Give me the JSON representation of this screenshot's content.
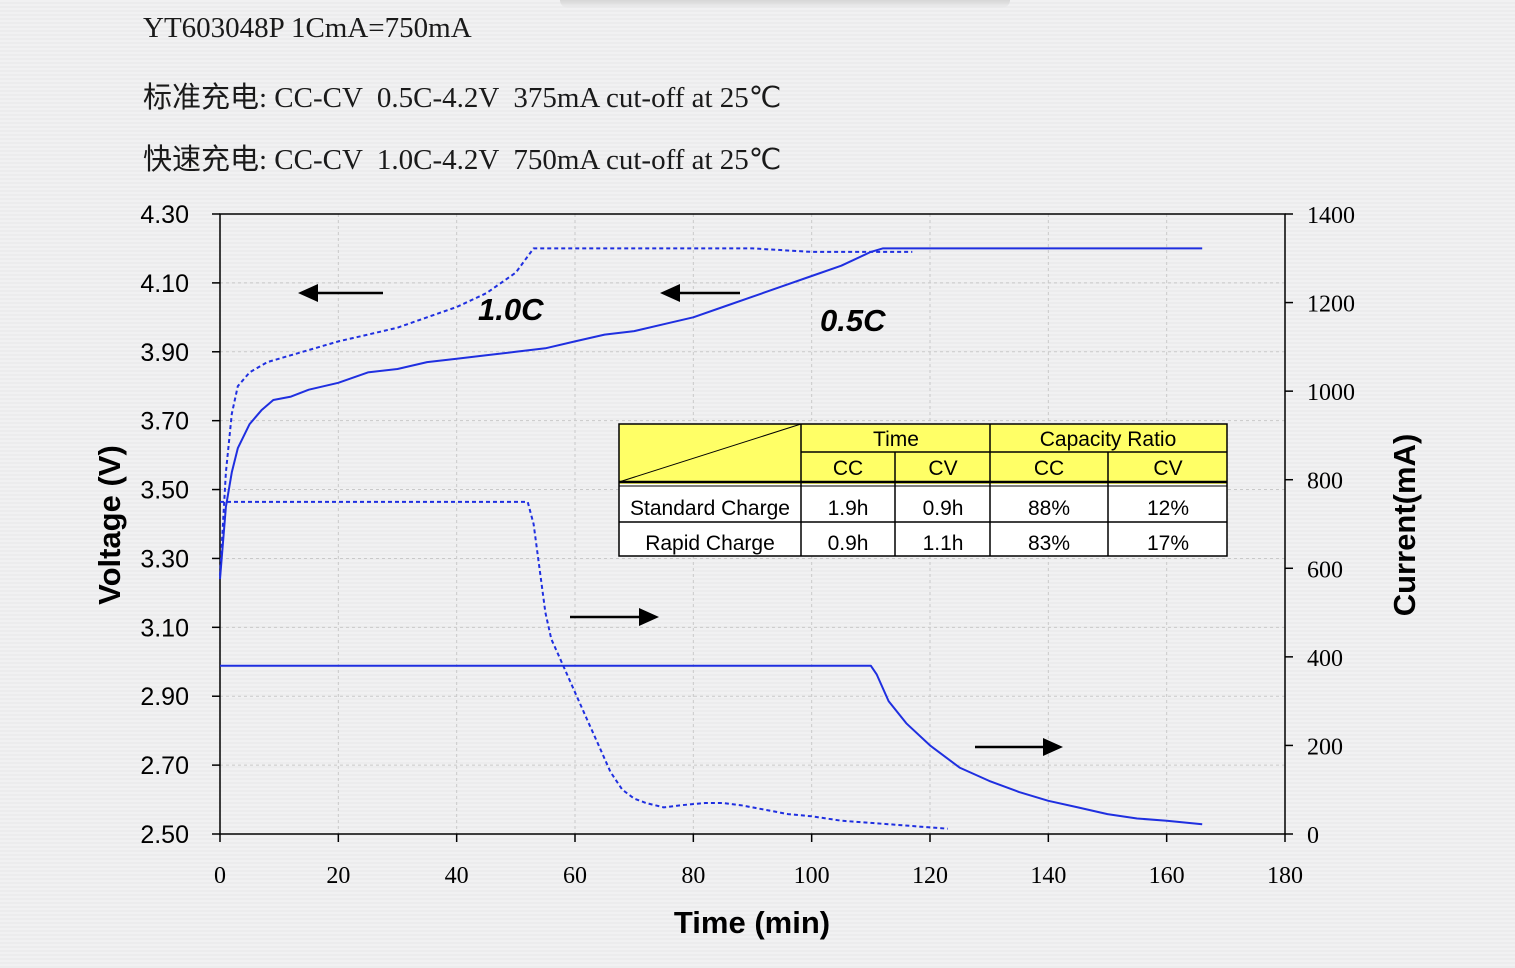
{
  "header": {
    "line1": "YT603048P 1CmA=750mA",
    "line2": "标准充电: CC-CV  0.5C-4.2V  375mA cut-off at 25℃",
    "line3": "快速充电: CC-CV  1.0C-4.2V  750mA cut-off at 25℃"
  },
  "colors": {
    "series": "#1f2fe0",
    "table_header": "#ffff66",
    "table_body": "#ffffff"
  },
  "chart_data": {
    "type": "line",
    "xlabel": "Time (min)",
    "ylabel": "Voltage (V)",
    "y2label": "Current(mA)",
    "xlim": [
      0,
      180
    ],
    "ylim": [
      2.5,
      4.3
    ],
    "y2lim": [
      0,
      1400
    ],
    "xticks": [
      "0",
      "20",
      "40",
      "60",
      "80",
      "100",
      "120",
      "140",
      "160",
      "180"
    ],
    "yticks": [
      "2.50",
      "2.70",
      "2.90",
      "3.10",
      "3.30",
      "3.50",
      "3.70",
      "3.90",
      "4.10",
      "4.30"
    ],
    "y2ticks": [
      "0",
      "200",
      "400",
      "600",
      "800",
      "1000",
      "1200",
      "1400"
    ],
    "grid": true,
    "annotations": [
      "1.0C",
      "0.5C"
    ],
    "series": [
      {
        "style": "dashed",
        "axis": "left",
        "points": [
          [
            0,
            3.25
          ],
          [
            1,
            3.55
          ],
          [
            2,
            3.72
          ],
          [
            3,
            3.8
          ],
          [
            5,
            3.84
          ],
          [
            8,
            3.87
          ],
          [
            12,
            3.89
          ],
          [
            16,
            3.91
          ],
          [
            20,
            3.93
          ],
          [
            25,
            3.95
          ],
          [
            30,
            3.97
          ],
          [
            35,
            4.0
          ],
          [
            40,
            4.03
          ],
          [
            45,
            4.07
          ],
          [
            50,
            4.13
          ],
          [
            53,
            4.2
          ],
          [
            55,
            4.2
          ],
          [
            60,
            4.2
          ],
          [
            70,
            4.2
          ],
          [
            80,
            4.2
          ],
          [
            90,
            4.2
          ],
          [
            100,
            4.19
          ],
          [
            110,
            4.19
          ],
          [
            117,
            4.19
          ]
        ]
      },
      {
        "style": "solid",
        "axis": "left",
        "points": [
          [
            0,
            3.24
          ],
          [
            1,
            3.45
          ],
          [
            2,
            3.55
          ],
          [
            3,
            3.62
          ],
          [
            5,
            3.69
          ],
          [
            7,
            3.73
          ],
          [
            9,
            3.76
          ],
          [
            12,
            3.77
          ],
          [
            15,
            3.79
          ],
          [
            20,
            3.81
          ],
          [
            25,
            3.84
          ],
          [
            30,
            3.85
          ],
          [
            35,
            3.87
          ],
          [
            40,
            3.88
          ],
          [
            45,
            3.89
          ],
          [
            50,
            3.9
          ],
          [
            55,
            3.91
          ],
          [
            60,
            3.93
          ],
          [
            65,
            3.95
          ],
          [
            70,
            3.96
          ],
          [
            75,
            3.98
          ],
          [
            80,
            4.0
          ],
          [
            85,
            4.03
          ],
          [
            90,
            4.06
          ],
          [
            95,
            4.09
          ],
          [
            100,
            4.12
          ],
          [
            105,
            4.15
          ],
          [
            110,
            4.19
          ],
          [
            112,
            4.2
          ],
          [
            120,
            4.2
          ],
          [
            130,
            4.2
          ],
          [
            140,
            4.2
          ],
          [
            150,
            4.2
          ],
          [
            160,
            4.2
          ],
          [
            166,
            4.2
          ]
        ]
      },
      {
        "style": "dashed",
        "axis": "right",
        "points": [
          [
            0,
            750
          ],
          [
            1,
            750
          ],
          [
            10,
            750
          ],
          [
            20,
            750
          ],
          [
            30,
            750
          ],
          [
            40,
            750
          ],
          [
            50,
            750
          ],
          [
            52,
            750
          ],
          [
            53,
            700
          ],
          [
            54,
            600
          ],
          [
            55,
            500
          ],
          [
            56,
            440
          ],
          [
            57,
            410
          ],
          [
            58,
            380
          ],
          [
            60,
            320
          ],
          [
            62,
            260
          ],
          [
            64,
            200
          ],
          [
            66,
            140
          ],
          [
            68,
            100
          ],
          [
            70,
            80
          ],
          [
            72,
            70
          ],
          [
            75,
            60
          ],
          [
            78,
            65
          ],
          [
            82,
            70
          ],
          [
            85,
            70
          ],
          [
            88,
            65
          ],
          [
            92,
            55
          ],
          [
            96,
            45
          ],
          [
            100,
            40
          ],
          [
            105,
            30
          ],
          [
            110,
            25
          ],
          [
            115,
            20
          ],
          [
            120,
            15
          ],
          [
            123,
            12
          ]
        ]
      },
      {
        "style": "solid",
        "axis": "right",
        "points": [
          [
            0,
            380
          ],
          [
            20,
            380
          ],
          [
            40,
            380
          ],
          [
            60,
            380
          ],
          [
            80,
            380
          ],
          [
            100,
            380
          ],
          [
            110,
            380
          ],
          [
            111,
            360
          ],
          [
            113,
            300
          ],
          [
            116,
            250
          ],
          [
            120,
            200
          ],
          [
            125,
            150
          ],
          [
            130,
            120
          ],
          [
            135,
            95
          ],
          [
            140,
            75
          ],
          [
            145,
            60
          ],
          [
            150,
            45
          ],
          [
            155,
            35
          ],
          [
            160,
            30
          ],
          [
            166,
            22
          ]
        ]
      }
    ],
    "table": {
      "group_headers": [
        "Time",
        "Capacity Ratio"
      ],
      "sub_headers": [
        "CC",
        "CV",
        "CC",
        "CV"
      ],
      "rows": [
        {
          "label": "Standard Charge",
          "values": [
            "1.9h",
            "0.9h",
            "88%",
            "12%"
          ]
        },
        {
          "label": "Rapid Charge",
          "values": [
            "0.9h",
            "1.1h",
            "83%",
            "17%"
          ]
        }
      ]
    }
  }
}
